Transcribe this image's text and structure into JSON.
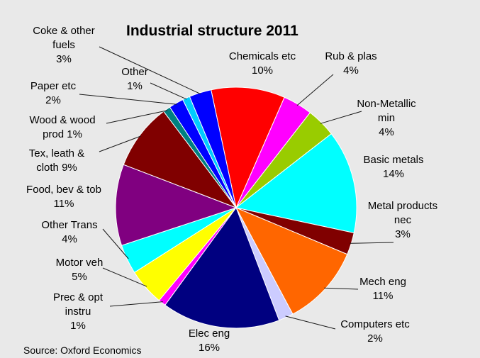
{
  "chart_data": {
    "type": "pie",
    "title": "Industrial structure 2011",
    "source": "Source: Oxford Economics",
    "legend": "none",
    "start_angle_deg": -12,
    "direction": "clockwise",
    "slices": [
      {
        "lines": [
          "Chemicals etc",
          "10%"
        ],
        "value": 10,
        "color": "#ff0000"
      },
      {
        "lines": [
          "Rub & plas",
          "4%"
        ],
        "value": 4,
        "color": "#ff00ff"
      },
      {
        "lines": [
          "Non-Metallic",
          "min",
          "4%"
        ],
        "value": 4,
        "color": "#99cc00"
      },
      {
        "lines": [
          "Basic metals",
          "14%"
        ],
        "value": 14,
        "color": "#00ffff"
      },
      {
        "lines": [
          "Metal products",
          "nec",
          "3%"
        ],
        "value": 3,
        "color": "#800000"
      },
      {
        "lines": [
          "Mech eng",
          "11%"
        ],
        "value": 11,
        "color": "#ff6600"
      },
      {
        "lines": [
          "Computers etc",
          "2%"
        ],
        "value": 2,
        "color": "#ccccff"
      },
      {
        "lines": [
          "Elec eng",
          "16%"
        ],
        "value": 16,
        "color": "#000080"
      },
      {
        "lines": [
          "Prec & opt",
          "instru",
          "1%"
        ],
        "value": 1,
        "color": "#ff00ff"
      },
      {
        "lines": [
          "Motor veh",
          "5%"
        ],
        "value": 5,
        "color": "#ffff00"
      },
      {
        "lines": [
          "Other Trans",
          "4%"
        ],
        "value": 4,
        "color": "#00ffff"
      },
      {
        "lines": [
          "Food, bev & tob",
          "11%"
        ],
        "value": 11,
        "color": "#800080"
      },
      {
        "lines": [
          "Tex, leath &",
          "cloth 9%"
        ],
        "value": 9,
        "color": "#800000"
      },
      {
        "lines": [
          "Wood & wood",
          "prod 1%"
        ],
        "value": 1,
        "color": "#008080"
      },
      {
        "lines": [
          "Paper etc",
          "2%"
        ],
        "value": 2,
        "color": "#0000ff"
      },
      {
        "lines": [
          "Other",
          "1%"
        ],
        "value": 1,
        "color": "#00ccff"
      },
      {
        "lines": [
          "Coke & other",
          "fuels",
          "3%"
        ],
        "value": 3,
        "color": "#0000ff"
      }
    ]
  }
}
